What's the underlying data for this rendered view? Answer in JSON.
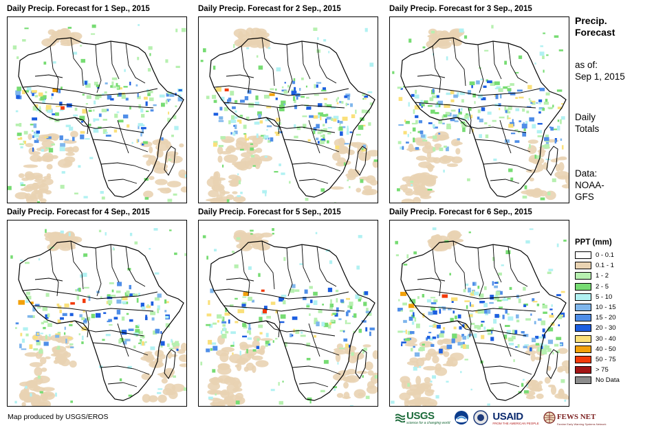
{
  "panels": [
    {
      "title": "Daily Precip. Forecast for 1 Sep., 2015",
      "rain_intensity": 0.7
    },
    {
      "title": "Daily Precip. Forecast for 2 Sep., 2015",
      "rain_intensity": 0.75
    },
    {
      "title": "Daily Precip. Forecast for 3 Sep., 2015",
      "rain_intensity": 0.8
    },
    {
      "title": "Daily Precip. Forecast for 4 Sep., 2015",
      "rain_intensity": 0.65
    },
    {
      "title": "Daily Precip. Forecast for 5 Sep., 2015",
      "rain_intensity": 0.6
    },
    {
      "title": "Daily Precip. Forecast for 6 Sep., 2015",
      "rain_intensity": 0.85
    }
  ],
  "sidebar": {
    "heading_line1": "Precip.",
    "heading_line2": "Forecast",
    "asof_line1": "as of:",
    "asof_line2": "Sep 1, 2015",
    "totals_line1": "Daily",
    "totals_line2": "Totals",
    "data_line1": "Data:",
    "data_line2": "NOAA-",
    "data_line3": "GFS"
  },
  "legend": {
    "title": "PPT (mm)",
    "items": [
      {
        "label": "0 - 0.1",
        "color": "#ffffff"
      },
      {
        "label": "0.1 - 1",
        "color": "#e9d3b2"
      },
      {
        "label": "1 - 2",
        "color": "#b7f0b0"
      },
      {
        "label": "2 - 5",
        "color": "#77dc73"
      },
      {
        "label": "5 - 10",
        "color": "#b1f1f2"
      },
      {
        "label": "10 - 15",
        "color": "#7fb6ec"
      },
      {
        "label": "15 - 20",
        "color": "#4f8ee8"
      },
      {
        "label": "20 - 30",
        "color": "#1c5ee0"
      },
      {
        "label": "30 - 40",
        "color": "#fae07a"
      },
      {
        "label": "40 - 50",
        "color": "#f2a10b"
      },
      {
        "label": "50 - 75",
        "color": "#f23a0a"
      },
      {
        "label": "> 75",
        "color": "#a31515"
      },
      {
        "label": "No Data",
        "color": "#8c8c8c"
      }
    ]
  },
  "footer": {
    "credit": "Map produced by USGS/EROS"
  },
  "logos": {
    "usgs": "USGS",
    "usgs_tagline": "science for a changing world",
    "usaid": "USAID",
    "usaid_tagline": "FROM THE AMERICAN PEOPLE",
    "fews": "FEWS NET",
    "fews_tagline": "Famine Early Warning Systems Network"
  }
}
